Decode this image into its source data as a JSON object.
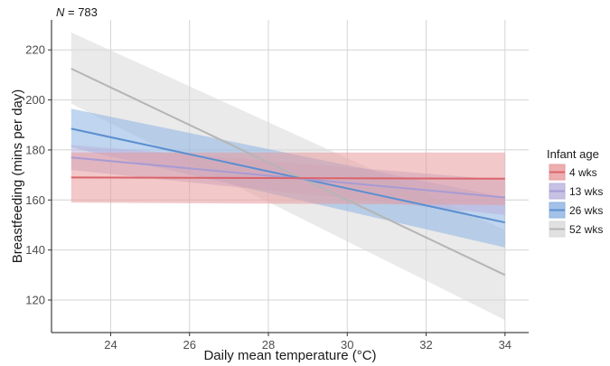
{
  "chart_data": {
    "type": "line",
    "annotation": {
      "italic": "N",
      "rest": " = 783"
    },
    "xlabel": "Daily mean temperature (°C)",
    "ylabel": "Breastfeeding (mins per day)",
    "xlim": [
      22.5,
      34.6
    ],
    "ylim": [
      107,
      232
    ],
    "x_ticks": [
      24,
      26,
      28,
      30,
      32,
      34
    ],
    "y_ticks": [
      120,
      140,
      160,
      180,
      200,
      220
    ],
    "grid": true,
    "legend": {
      "title": "Infant age",
      "position": "right"
    },
    "series": [
      {
        "name": "52 wks",
        "color": "#b5b5b5",
        "fill": "#d9d9d9",
        "points": [
          [
            23,
            212.5,
            198.5,
            227
          ],
          [
            34,
            130,
            112,
            148
          ]
        ]
      },
      {
        "name": "26 wks",
        "color": "#5b8fd0",
        "fill": "#8db3e2",
        "points": [
          [
            23,
            188.5,
            181,
            196.5
          ],
          [
            34,
            151,
            141,
            161
          ]
        ]
      },
      {
        "name": "13 wks",
        "color": "#a79bd3",
        "fill": "#b9b2dc",
        "points": [
          [
            23,
            177,
            172,
            182
          ],
          [
            34,
            161,
            154,
            168
          ]
        ]
      },
      {
        "name": "4 wks",
        "color": "#d9646a",
        "fill": "#e89a9c",
        "points": [
          [
            23,
            169,
            159,
            179
          ],
          [
            34,
            168.5,
            158,
            179
          ]
        ]
      }
    ]
  }
}
